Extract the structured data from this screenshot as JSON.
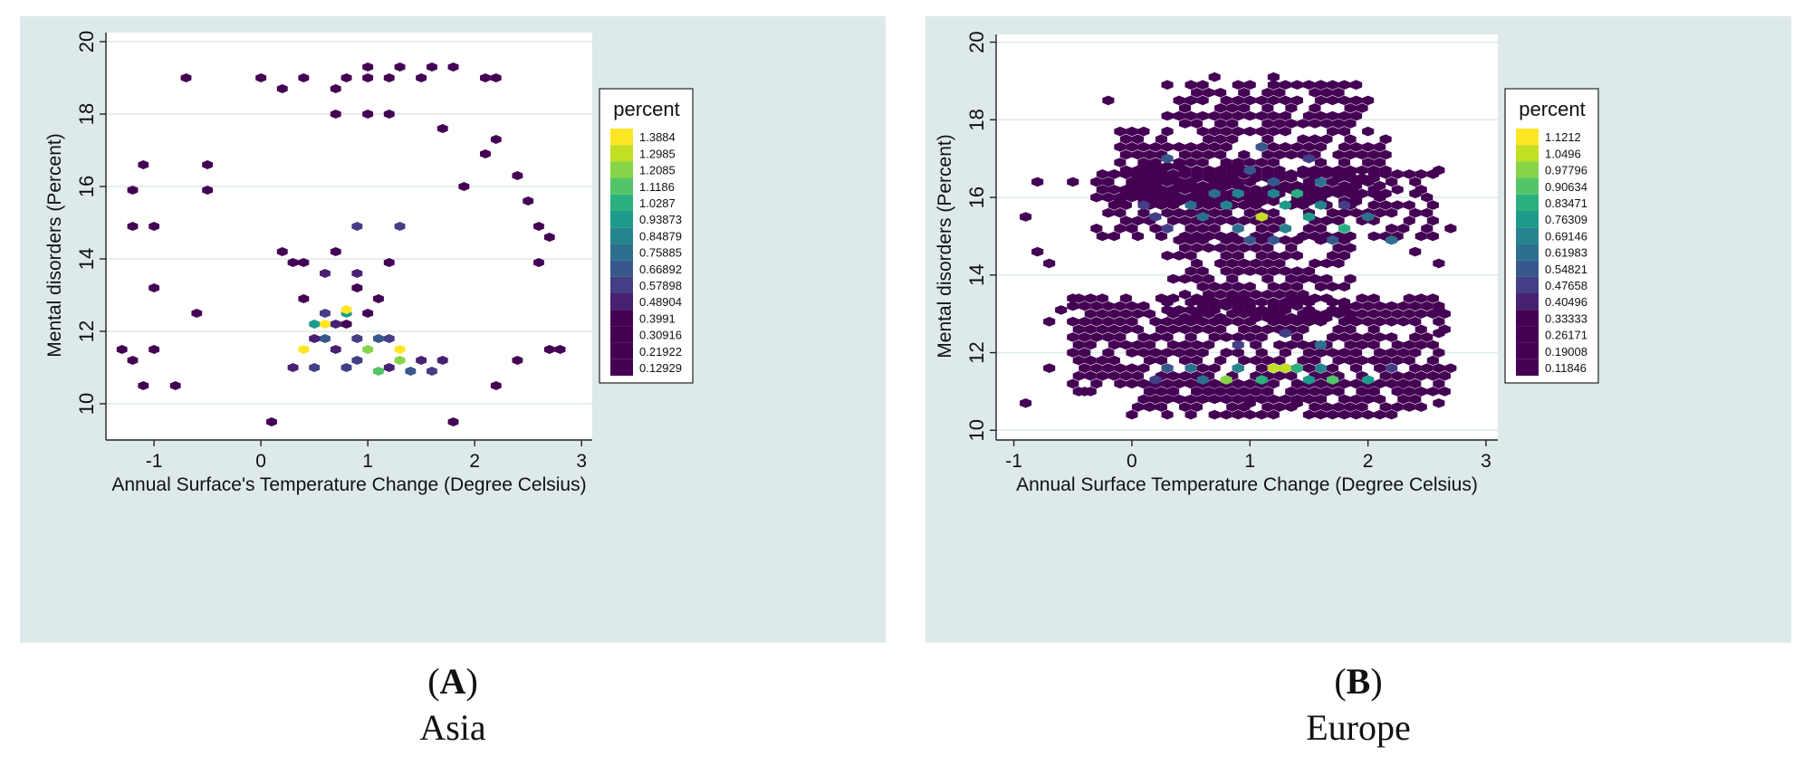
{
  "chart_data": [
    {
      "type": "heatmap",
      "subtype": "hexbin",
      "panel_letter": "A",
      "panel_title": "Asia",
      "xlabel": "Annual Surface's Temperature Change (Degree Celsius)",
      "ylabel": "Mental disorders (Percent)",
      "xlim": [
        -1.45,
        3.1
      ],
      "ylim": [
        9.0,
        20.25
      ],
      "xticks": [
        -1,
        0,
        1,
        2,
        3
      ],
      "yticks": [
        10,
        12,
        14,
        16,
        18,
        20
      ],
      "grid": true,
      "hex_spacing_x": 0.1,
      "hex_spacing_y": 0.2,
      "legend": {
        "title": "percent",
        "position": "right",
        "breaks": [
          "1.3884",
          "1.2985",
          "1.2085",
          "1.1186",
          "1.0287",
          "0.93873",
          "0.84879",
          "0.75885",
          "0.66892",
          "0.57898",
          "0.48904",
          "0.3991",
          "0.30916",
          "0.21922",
          "0.12929"
        ],
        "colors": [
          "#fde725",
          "#c2df23",
          "#86d549",
          "#52c569",
          "#2ab07f",
          "#1e9b8a",
          "#25858e",
          "#2d708e",
          "#38588c",
          "#433e85",
          "#482173",
          "#440154",
          "#440154",
          "#440154",
          "#440154"
        ]
      },
      "cells": [
        [
          -0.7,
          19.0,
          0.13
        ],
        [
          0.0,
          19.0,
          0.13
        ],
        [
          0.2,
          18.7,
          0.13
        ],
        [
          0.4,
          19.0,
          0.13
        ],
        [
          0.7,
          18.7,
          0.13
        ],
        [
          0.8,
          19.0,
          0.13
        ],
        [
          1.0,
          19.0,
          0.13
        ],
        [
          1.0,
          19.3,
          0.13
        ],
        [
          1.2,
          19.0,
          0.13
        ],
        [
          1.3,
          19.3,
          0.13
        ],
        [
          1.5,
          19.0,
          0.13
        ],
        [
          1.6,
          19.3,
          0.13
        ],
        [
          1.8,
          19.3,
          0.13
        ],
        [
          2.1,
          19.0,
          0.13
        ],
        [
          2.2,
          19.0,
          0.13
        ],
        [
          0.7,
          18.0,
          0.13
        ],
        [
          1.0,
          18.0,
          0.13
        ],
        [
          1.2,
          18.0,
          0.13
        ],
        [
          1.7,
          17.6,
          0.13
        ],
        [
          2.2,
          17.3,
          0.13
        ],
        [
          2.1,
          16.9,
          0.13
        ],
        [
          2.4,
          16.3,
          0.13
        ],
        [
          2.6,
          14.9,
          0.13
        ],
        [
          2.7,
          14.6,
          0.13
        ],
        [
          2.6,
          13.9,
          0.13
        ],
        [
          2.5,
          15.6,
          0.13
        ],
        [
          -1.1,
          16.6,
          0.13
        ],
        [
          -1.2,
          15.9,
          0.13
        ],
        [
          -1.2,
          14.9,
          0.13
        ],
        [
          -1.0,
          14.9,
          0.13
        ],
        [
          -1.0,
          13.2,
          0.13
        ],
        [
          -1.3,
          11.5,
          0.13
        ],
        [
          -1.2,
          11.2,
          0.13
        ],
        [
          -1.0,
          11.5,
          0.13
        ],
        [
          -1.1,
          10.5,
          0.13
        ],
        [
          -0.8,
          10.5,
          0.13
        ],
        [
          -0.6,
          12.5,
          0.13
        ],
        [
          0.1,
          9.5,
          0.13
        ],
        [
          1.8,
          9.5,
          0.13
        ],
        [
          2.7,
          11.5,
          0.13
        ],
        [
          2.8,
          11.5,
          0.13
        ],
        [
          2.4,
          11.2,
          0.13
        ],
        [
          2.2,
          10.5,
          0.13
        ],
        [
          1.9,
          16.0,
          0.13
        ],
        [
          -0.5,
          16.6,
          0.13
        ],
        [
          -0.5,
          15.9,
          0.13
        ],
        [
          0.5,
          12.2,
          0.95
        ],
        [
          0.6,
          12.5,
          0.6
        ],
        [
          0.8,
          12.5,
          0.95
        ],
        [
          0.8,
          12.2,
          0.45
        ],
        [
          0.7,
          12.2,
          0.55
        ],
        [
          1.0,
          12.5,
          0.4
        ],
        [
          0.4,
          11.5,
          1.39
        ],
        [
          0.6,
          12.2,
          1.39
        ],
        [
          0.8,
          12.6,
          1.39
        ],
        [
          1.0,
          11.5,
          1.21
        ],
        [
          1.3,
          11.5,
          1.39
        ],
        [
          1.3,
          11.2,
          1.29
        ],
        [
          1.1,
          11.8,
          0.7
        ],
        [
          0.9,
          11.8,
          0.65
        ],
        [
          1.2,
          11.8,
          0.6
        ],
        [
          0.6,
          11.8,
          0.7
        ],
        [
          1.1,
          10.9,
          1.12
        ],
        [
          1.4,
          10.9,
          0.75
        ],
        [
          0.3,
          11.0,
          0.5
        ],
        [
          0.5,
          11.0,
          0.65
        ],
        [
          0.8,
          11.0,
          0.6
        ],
        [
          0.9,
          11.2,
          0.65
        ],
        [
          1.2,
          11.0,
          0.55
        ],
        [
          1.5,
          11.2,
          0.55
        ],
        [
          1.6,
          10.9,
          0.6
        ],
        [
          1.7,
          11.2,
          0.5
        ],
        [
          0.7,
          11.5,
          0.55
        ],
        [
          0.5,
          11.8,
          0.5
        ],
        [
          0.9,
          13.6,
          0.55
        ],
        [
          0.6,
          13.6,
          0.55
        ],
        [
          0.4,
          13.9,
          0.45
        ],
        [
          0.7,
          14.2,
          0.4
        ],
        [
          1.2,
          13.9,
          0.45
        ],
        [
          0.9,
          14.9,
          0.6
        ],
        [
          1.3,
          14.9,
          0.6
        ],
        [
          0.3,
          13.9,
          0.4
        ],
        [
          0.2,
          14.2,
          0.35
        ],
        [
          0.4,
          12.9,
          0.4
        ],
        [
          0.9,
          13.2,
          0.35
        ],
        [
          1.1,
          12.9,
          0.35
        ]
      ]
    },
    {
      "type": "heatmap",
      "subtype": "hexbin",
      "panel_letter": "B",
      "panel_title": "Europe",
      "xlabel": "Annual Surface Temperature Change (Degree Celsius)",
      "ylabel": "Mental disorders (Percent)",
      "xlim": [
        -1.15,
        3.1
      ],
      "ylim": [
        9.75,
        20.2
      ],
      "xticks": [
        -1,
        0,
        1,
        2,
        3
      ],
      "yticks": [
        10,
        12,
        14,
        16,
        18,
        20
      ],
      "grid": true,
      "hex_spacing_x": 0.1,
      "hex_spacing_y": 0.2,
      "legend": {
        "title": "percent",
        "position": "right",
        "breaks": [
          "1.1212",
          "1.0496",
          "0.97796",
          "0.90634",
          "0.83471",
          "0.76309",
          "0.69146",
          "0.61983",
          "0.54821",
          "0.47658",
          "0.40496",
          "0.33333",
          "0.26171",
          "0.19008",
          "0.11846"
        ],
        "colors": [
          "#fde725",
          "#c2df23",
          "#86d549",
          "#52c569",
          "#2ab07f",
          "#1e9b8a",
          "#25858e",
          "#2d708e",
          "#38588c",
          "#433e85",
          "#482173",
          "#440154",
          "#440154",
          "#440154",
          "#440154"
        ]
      },
      "cells": [
        [
          0.7,
          19.1,
          0.12
        ],
        [
          1.2,
          19.1,
          0.12
        ],
        [
          -0.2,
          18.5,
          0.12
        ],
        [
          0.5,
          18.5,
          0.12
        ],
        [
          1.4,
          18.5,
          0.12
        ],
        [
          1.6,
          18.9,
          0.12
        ],
        [
          1.9,
          18.9,
          0.12
        ],
        [
          2.0,
          18.5,
          0.12
        ],
        [
          -0.9,
          15.5,
          0.12
        ],
        [
          -0.8,
          16.4,
          0.12
        ],
        [
          -0.5,
          16.4,
          0.12
        ],
        [
          -0.8,
          14.6,
          0.12
        ],
        [
          -0.7,
          14.3,
          0.12
        ],
        [
          -0.9,
          10.7,
          0.12
        ],
        [
          -0.7,
          11.6,
          0.12
        ],
        [
          -0.4,
          11.0,
          0.12
        ],
        [
          2.7,
          15.2,
          0.12
        ],
        [
          2.6,
          16.7,
          0.12
        ],
        [
          2.6,
          14.3,
          0.12
        ],
        [
          2.6,
          13.1,
          0.12
        ],
        [
          2.6,
          12.5,
          0.12
        ],
        [
          2.6,
          10.7,
          0.12
        ],
        [
          2.4,
          14.6,
          0.12
        ],
        [
          2.4,
          16.1,
          0.12
        ],
        [
          2.7,
          11.6,
          0.12
        ],
        [
          -0.7,
          12.8,
          0.12
        ],
        [
          -0.6,
          13.1,
          0.12
        ],
        [
          -0.5,
          13.4,
          0.12
        ],
        [
          -0.2,
          12.8,
          0.12
        ],
        [
          1.1,
          15.5,
          1.12
        ],
        [
          1.2,
          11.6,
          1.12
        ],
        [
          1.3,
          11.6,
          1.05
        ],
        [
          0.8,
          11.3,
          0.98
        ],
        [
          1.1,
          11.3,
          0.9
        ],
        [
          1.4,
          11.6,
          0.9
        ],
        [
          1.7,
          11.3,
          0.91
        ],
        [
          2.0,
          11.3,
          0.83
        ],
        [
          1.5,
          11.3,
          0.8
        ],
        [
          1.6,
          11.6,
          0.75
        ],
        [
          0.9,
          11.6,
          0.7
        ],
        [
          0.6,
          11.3,
          0.62
        ],
        [
          0.5,
          11.6,
          0.62
        ],
        [
          0.3,
          11.6,
          0.55
        ],
        [
          0.2,
          11.3,
          0.5
        ],
        [
          1.3,
          15.8,
          0.83
        ],
        [
          1.4,
          16.1,
          0.9
        ],
        [
          1.2,
          16.1,
          0.75
        ],
        [
          1.3,
          15.2,
          0.76
        ],
        [
          1.5,
          15.5,
          0.83
        ],
        [
          1.8,
          15.2,
          0.9
        ],
        [
          1.6,
          15.8,
          0.7
        ],
        [
          0.8,
          15.8,
          0.7
        ],
        [
          0.9,
          16.1,
          0.76
        ],
        [
          0.7,
          16.1,
          0.62
        ],
        [
          0.5,
          15.8,
          0.62
        ],
        [
          0.6,
          15.5,
          0.62
        ],
        [
          0.9,
          15.2,
          0.62
        ],
        [
          1.0,
          14.9,
          0.55
        ],
        [
          1.2,
          14.9,
          0.55
        ],
        [
          1.7,
          14.9,
          0.55
        ],
        [
          2.0,
          15.5,
          0.62
        ],
        [
          2.2,
          14.9,
          0.62
        ],
        [
          1.6,
          16.4,
          0.62
        ],
        [
          1.0,
          16.7,
          0.55
        ],
        [
          1.2,
          16.4,
          0.55
        ],
        [
          1.1,
          17.3,
          0.55
        ],
        [
          0.3,
          15.2,
          0.48
        ],
        [
          0.2,
          15.5,
          0.48
        ],
        [
          0.1,
          15.8,
          0.48
        ],
        [
          0.3,
          16.1,
          0.4
        ],
        [
          0.0,
          15.2,
          0.4
        ],
        [
          0.3,
          17.0,
          0.55
        ],
        [
          1.8,
          15.8,
          0.48
        ],
        [
          1.9,
          16.1,
          0.4
        ],
        [
          1.5,
          17.0,
          0.48
        ],
        [
          1.6,
          12.2,
          0.62
        ],
        [
          1.3,
          12.5,
          0.48
        ],
        [
          0.9,
          12.2,
          0.48
        ],
        [
          1.4,
          10.7,
          0.4
        ],
        [
          1.0,
          10.7,
          0.4
        ],
        [
          2.2,
          11.6,
          0.48
        ]
      ],
      "dense_regions": [
        [
          -0.3,
          1.0,
          16.0,
          16.8
        ],
        [
          -0.1,
          2.1,
          15.9,
          17.8
        ],
        [
          0.3,
          1.9,
          17.9,
          19.0
        ],
        [
          -0.3,
          2.5,
          15.0,
          16.6
        ],
        [
          0.3,
          1.8,
          12.9,
          14.9
        ],
        [
          -0.5,
          2.6,
          11.0,
          13.5
        ],
        [
          0.0,
          2.4,
          10.4,
          11.3
        ]
      ]
    }
  ],
  "panels": {
    "a": {
      "letter": "A",
      "title": "Asia"
    },
    "b": {
      "letter": "B",
      "title": "Europe"
    }
  }
}
